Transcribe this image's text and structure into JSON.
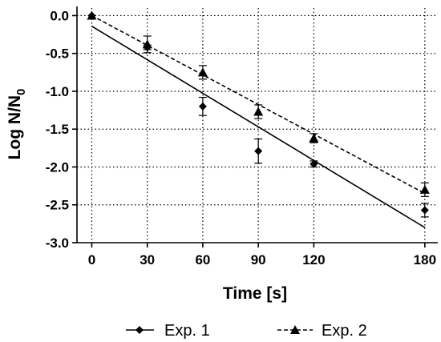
{
  "chart_data": {
    "type": "scatter",
    "xlabel": "Time [s]",
    "ylabel": "Log N/N",
    "ylabel_subscript": "0",
    "xlim": [
      -8,
      187
    ],
    "ylim": [
      -3.0,
      0.1
    ],
    "x_ticks": [
      0,
      30,
      60,
      90,
      120,
      180
    ],
    "y_ticks": [
      0.0,
      -0.5,
      -1.0,
      -1.5,
      -2.0,
      -2.5,
      -3.0
    ],
    "y_tick_labels": [
      "0.0",
      "-0.5",
      "-1.0",
      "-1.5",
      "-2.0",
      "-2.5",
      "-3.0"
    ],
    "grid": "dotted, major ticks",
    "legend_position": "bottom",
    "series": [
      {
        "name": "Exp. 1",
        "marker": "diamond",
        "line_style": "solid",
        "x": [
          0,
          30,
          60,
          90,
          120,
          180
        ],
        "y": [
          0.0,
          -0.42,
          -1.2,
          -1.79,
          -1.96,
          -2.57
        ],
        "yerr": [
          0.0,
          0.03,
          0.12,
          0.16,
          0.04,
          0.09
        ],
        "fit_line": {
          "x": [
            0,
            180
          ],
          "y": [
            -0.14,
            -2.8
          ]
        }
      },
      {
        "name": "Exp. 2",
        "marker": "triangle",
        "line_style": "dashed",
        "x": [
          0,
          30,
          60,
          90,
          120,
          180
        ],
        "y": [
          0.0,
          -0.38,
          -0.75,
          -1.27,
          -1.62,
          -2.3
        ],
        "yerr": [
          0.0,
          0.11,
          0.09,
          0.09,
          0.06,
          0.09
        ],
        "fit_line": {
          "x": [
            0,
            180
          ],
          "y": [
            0.0,
            -2.35
          ]
        }
      }
    ]
  }
}
